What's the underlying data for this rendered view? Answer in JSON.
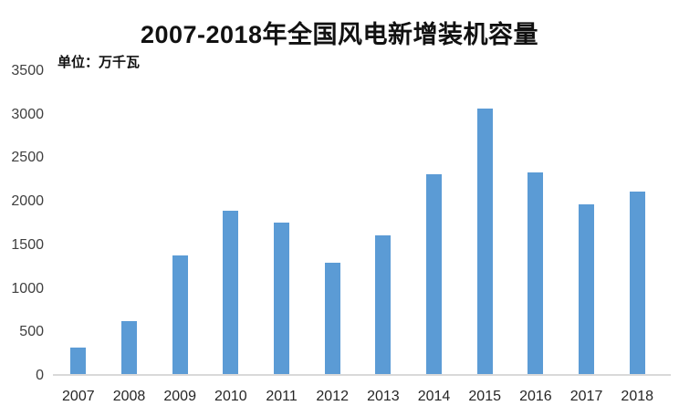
{
  "chart_data": {
    "type": "bar",
    "title": "2007-2018年全国风电新增装机容量",
    "unit_label": "单位：万千瓦",
    "xlabel": "",
    "ylabel": "",
    "categories": [
      "2007",
      "2008",
      "2009",
      "2010",
      "2011",
      "2012",
      "2013",
      "2014",
      "2015",
      "2016",
      "2017",
      "2018"
    ],
    "values": [
      330,
      625,
      1380,
      1893,
      1763,
      1296,
      1610,
      2320,
      3075,
      2337,
      1966,
      2114
    ],
    "ylim": [
      0,
      3500
    ],
    "y_ticks": [
      0,
      500,
      1000,
      1500,
      2000,
      2500,
      3000,
      3500
    ],
    "grid": false,
    "legend": false,
    "bar_color": "#5B9BD5",
    "axis_line_color": "#D9D9D9",
    "background_color": "#FFFFFF"
  }
}
